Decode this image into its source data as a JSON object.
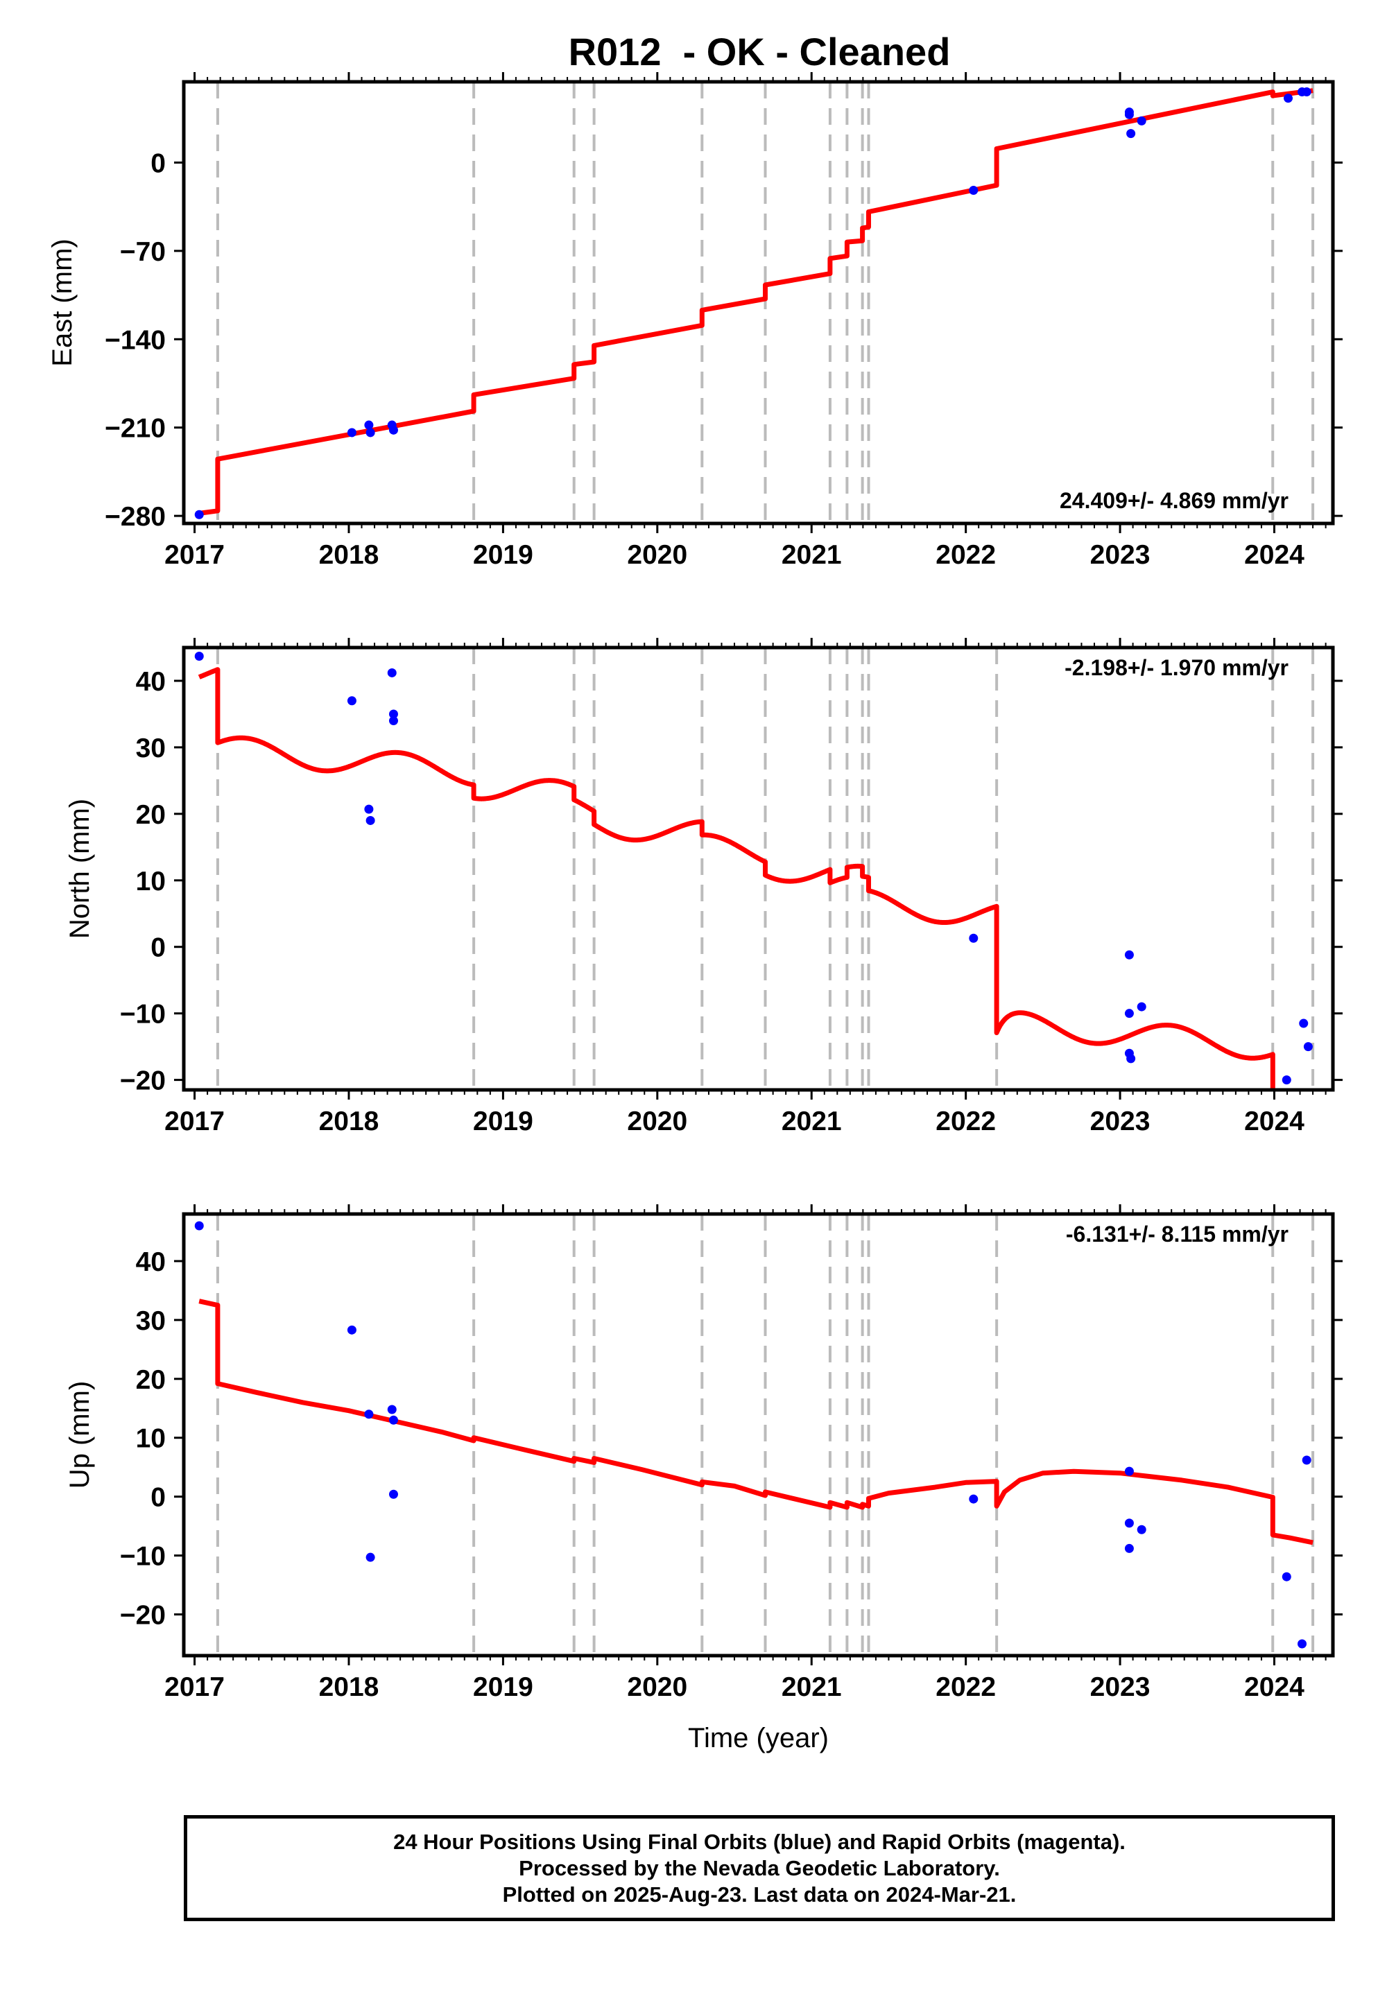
{
  "title": "R012  - OK - Cleaned",
  "colors": {
    "model": "#ff0000",
    "final_orbits": "#0000ff",
    "rapid_orbits": "#ff00ff",
    "event_lines": "#bbbbbb"
  },
  "xlabel": "Time (year)",
  "footer": {
    "line1": "24 Hour Positions Using Final Orbits (blue) and Rapid Orbits (magenta).",
    "line2": "Processed by the Nevada Geodetic Laboratory.",
    "line3": "Plotted on 2025-Aug-23. Last data on 2024-Mar-21."
  },
  "chart_data": [
    {
      "type": "scatter",
      "component": "East",
      "ylabel": "East (mm)",
      "rate_label": "24.409+/- 4.869 mm/yr",
      "rate_position": "bottom-right",
      "xlim": [
        2016.93,
        2024.38
      ],
      "ylim": [
        -286,
        64
      ],
      "xticks": [
        2017,
        2018,
        2019,
        2020,
        2021,
        2022,
        2023,
        2024
      ],
      "xtick_labels": [
        "2017",
        "2018",
        "2019",
        "2020",
        "2021",
        "2022",
        "2023",
        "2024"
      ],
      "yticks": [
        0,
        -70,
        -140,
        -210,
        -280
      ],
      "ytick_labels": [
        "0",
        "−70",
        "−140",
        "−210",
        "−280"
      ],
      "event_lines": [
        2017.15,
        2018.81,
        2019.46,
        2019.59,
        2020.29,
        2020.7,
        2021.12,
        2021.23,
        2021.33,
        2021.37,
        2023.99,
        2024.25
      ],
      "points": [
        {
          "x": 2017.03,
          "y": -279
        },
        {
          "x": 2018.02,
          "y": -214
        },
        {
          "x": 2018.13,
          "y": -208
        },
        {
          "x": 2018.14,
          "y": -214
        },
        {
          "x": 2018.28,
          "y": -208
        },
        {
          "x": 2018.29,
          "y": -212
        },
        {
          "x": 2022.05,
          "y": -22
        },
        {
          "x": 2023.06,
          "y": 40
        },
        {
          "x": 2023.06,
          "y": 38
        },
        {
          "x": 2023.07,
          "y": 23
        },
        {
          "x": 2023.14,
          "y": 33
        },
        {
          "x": 2024.09,
          "y": 51
        },
        {
          "x": 2024.18,
          "y": 56
        },
        {
          "x": 2024.21,
          "y": 56
        }
      ],
      "model": [
        [
          2017.03,
          -278
        ],
        [
          2017.15,
          -276
        ],
        [
          2017.15,
          -235
        ],
        [
          2018.81,
          -197
        ],
        [
          2018.81,
          -184
        ],
        [
          2019.46,
          -171
        ],
        [
          2019.46,
          -160
        ],
        [
          2019.59,
          -158
        ],
        [
          2019.59,
          -145
        ],
        [
          2020.29,
          -129
        ],
        [
          2020.29,
          -117
        ],
        [
          2020.7,
          -108
        ],
        [
          2020.7,
          -97
        ],
        [
          2021.12,
          -88
        ],
        [
          2021.12,
          -76
        ],
        [
          2021.23,
          -74
        ],
        [
          2021.23,
          -63
        ],
        [
          2021.33,
          -62
        ],
        [
          2021.33,
          -52
        ],
        [
          2021.37,
          -51
        ],
        [
          2021.37,
          -39
        ],
        [
          2022.2,
          -18
        ],
        [
          2022.2,
          11
        ],
        [
          2023.99,
          56
        ],
        [
          2023.99,
          53
        ],
        [
          2024.25,
          57
        ]
      ]
    },
    {
      "type": "scatter",
      "component": "North",
      "ylabel": "North (mm)",
      "rate_label": "-2.198+/- 1.970 mm/yr",
      "rate_position": "top-right",
      "xlim": [
        2016.93,
        2024.38
      ],
      "ylim": [
        -21.5,
        45
      ],
      "xticks": [
        2017,
        2018,
        2019,
        2020,
        2021,
        2022,
        2023,
        2024
      ],
      "xtick_labels": [
        "2017",
        "2018",
        "2019",
        "2020",
        "2021",
        "2022",
        "2023",
        "2024"
      ],
      "yticks": [
        40,
        30,
        20,
        10,
        0,
        -10,
        -20
      ],
      "ytick_labels": [
        "40",
        "30",
        "20",
        "10",
        "0",
        "−10",
        "−20"
      ],
      "event_lines": [
        2017.15,
        2018.81,
        2019.46,
        2019.59,
        2020.29,
        2020.7,
        2021.12,
        2021.23,
        2021.33,
        2021.37,
        2022.2,
        2023.99,
        2024.25
      ],
      "points": [
        {
          "x": 2017.03,
          "y": 43.7
        },
        {
          "x": 2018.02,
          "y": 37.0
        },
        {
          "x": 2018.13,
          "y": 20.7
        },
        {
          "x": 2018.14,
          "y": 19.0
        },
        {
          "x": 2018.28,
          "y": 41.2
        },
        {
          "x": 2018.29,
          "y": 35.0
        },
        {
          "x": 2018.29,
          "y": 34.0
        },
        {
          "x": 2022.05,
          "y": 1.3
        },
        {
          "x": 2023.06,
          "y": -1.2
        },
        {
          "x": 2023.06,
          "y": -10.0
        },
        {
          "x": 2023.06,
          "y": -16.0
        },
        {
          "x": 2023.07,
          "y": -16.8
        },
        {
          "x": 2023.14,
          "y": -9.0
        },
        {
          "x": 2024.08,
          "y": -20.0
        },
        {
          "x": 2024.19,
          "y": -11.5
        },
        {
          "x": 2024.22,
          "y": -15.0
        }
      ],
      "model_params": {
        "t_start": 2017.03,
        "t_end": 2024.25,
        "base": 41.15,
        "rate": -2.198,
        "seasonal_amplitude": 1.9,
        "seasonal_peak": 0.33,
        "steps": [
          [
            2017.15,
            -11
          ],
          [
            2018.81,
            -2
          ],
          [
            2019.46,
            -2
          ],
          [
            2019.59,
            -2
          ],
          [
            2020.29,
            -2
          ],
          [
            2020.7,
            -2
          ],
          [
            2021.12,
            -2
          ],
          [
            2021.23,
            1.5
          ],
          [
            2021.33,
            -1.5
          ],
          [
            2021.37,
            -2
          ],
          [
            2022.2,
            -16
          ],
          [
            2023.99,
            -11.5
          ]
        ],
        "postseismic": {
          "t": 2022.2,
          "amplitude": -3.0,
          "tau": 0.06
        }
      }
    },
    {
      "type": "scatter",
      "component": "Up",
      "ylabel": "Up (mm)",
      "rate_label": "-6.131+/- 8.115 mm/yr",
      "rate_position": "top-right",
      "xlim": [
        2016.93,
        2024.38
      ],
      "ylim": [
        -27,
        48
      ],
      "xticks": [
        2017,
        2018,
        2019,
        2020,
        2021,
        2022,
        2023,
        2024
      ],
      "xtick_labels": [
        "2017",
        "2018",
        "2019",
        "2020",
        "2021",
        "2022",
        "2023",
        "2024"
      ],
      "yticks": [
        40,
        30,
        20,
        10,
        0,
        -10,
        -20
      ],
      "ytick_labels": [
        "40",
        "30",
        "20",
        "10",
        "0",
        "−10",
        "−20"
      ],
      "event_lines": [
        2017.15,
        2018.81,
        2019.46,
        2019.59,
        2020.29,
        2020.7,
        2021.12,
        2021.23,
        2021.33,
        2021.37,
        2022.2,
        2023.99,
        2024.25
      ],
      "points": [
        {
          "x": 2017.03,
          "y": 46.0
        },
        {
          "x": 2018.02,
          "y": 28.3
        },
        {
          "x": 2018.13,
          "y": 14.0
        },
        {
          "x": 2018.14,
          "y": -10.3
        },
        {
          "x": 2018.28,
          "y": 14.8
        },
        {
          "x": 2018.29,
          "y": 13.0
        },
        {
          "x": 2018.29,
          "y": 0.4
        },
        {
          "x": 2022.05,
          "y": -0.4
        },
        {
          "x": 2023.06,
          "y": 4.3
        },
        {
          "x": 2023.06,
          "y": -4.5
        },
        {
          "x": 2023.06,
          "y": -8.8
        },
        {
          "x": 2023.14,
          "y": -5.6
        },
        {
          "x": 2024.08,
          "y": -13.6
        },
        {
          "x": 2024.18,
          "y": -25.0
        },
        {
          "x": 2024.21,
          "y": 6.2
        }
      ],
      "model": [
        [
          2017.03,
          33.2
        ],
        [
          2017.15,
          32.5
        ],
        [
          2017.15,
          19.2
        ],
        [
          2017.4,
          17.7
        ],
        [
          2017.7,
          16.0
        ],
        [
          2018.0,
          14.6
        ],
        [
          2018.3,
          12.8
        ],
        [
          2018.6,
          11.0
        ],
        [
          2018.81,
          9.5
        ],
        [
          2018.81,
          10.0
        ],
        [
          2019.1,
          8.2
        ],
        [
          2019.46,
          6.0
        ],
        [
          2019.46,
          6.5
        ],
        [
          2019.59,
          5.8
        ],
        [
          2019.59,
          6.5
        ],
        [
          2019.9,
          4.6
        ],
        [
          2020.29,
          2.0
        ],
        [
          2020.29,
          2.5
        ],
        [
          2020.5,
          1.8
        ],
        [
          2020.7,
          0.2
        ],
        [
          2020.7,
          0.8
        ],
        [
          2021.12,
          -1.8
        ],
        [
          2021.12,
          -1.0
        ],
        [
          2021.23,
          -1.8
        ],
        [
          2021.23,
          -1.0
        ],
        [
          2021.33,
          -1.8
        ],
        [
          2021.33,
          -1.3
        ],
        [
          2021.37,
          -1.6
        ],
        [
          2021.37,
          -0.3
        ],
        [
          2021.5,
          0.6
        ],
        [
          2021.8,
          1.6
        ],
        [
          2022.0,
          2.4
        ],
        [
          2022.2,
          2.6
        ],
        [
          2022.2,
          -1.6
        ],
        [
          2022.25,
          0.8
        ],
        [
          2022.35,
          2.8
        ],
        [
          2022.5,
          4.0
        ],
        [
          2022.7,
          4.3
        ],
        [
          2023.0,
          4.0
        ],
        [
          2023.4,
          2.8
        ],
        [
          2023.7,
          1.6
        ],
        [
          2023.99,
          -0.1
        ],
        [
          2023.99,
          -6.5
        ],
        [
          2024.1,
          -7.0
        ],
        [
          2024.25,
          -7.8
        ]
      ]
    }
  ]
}
